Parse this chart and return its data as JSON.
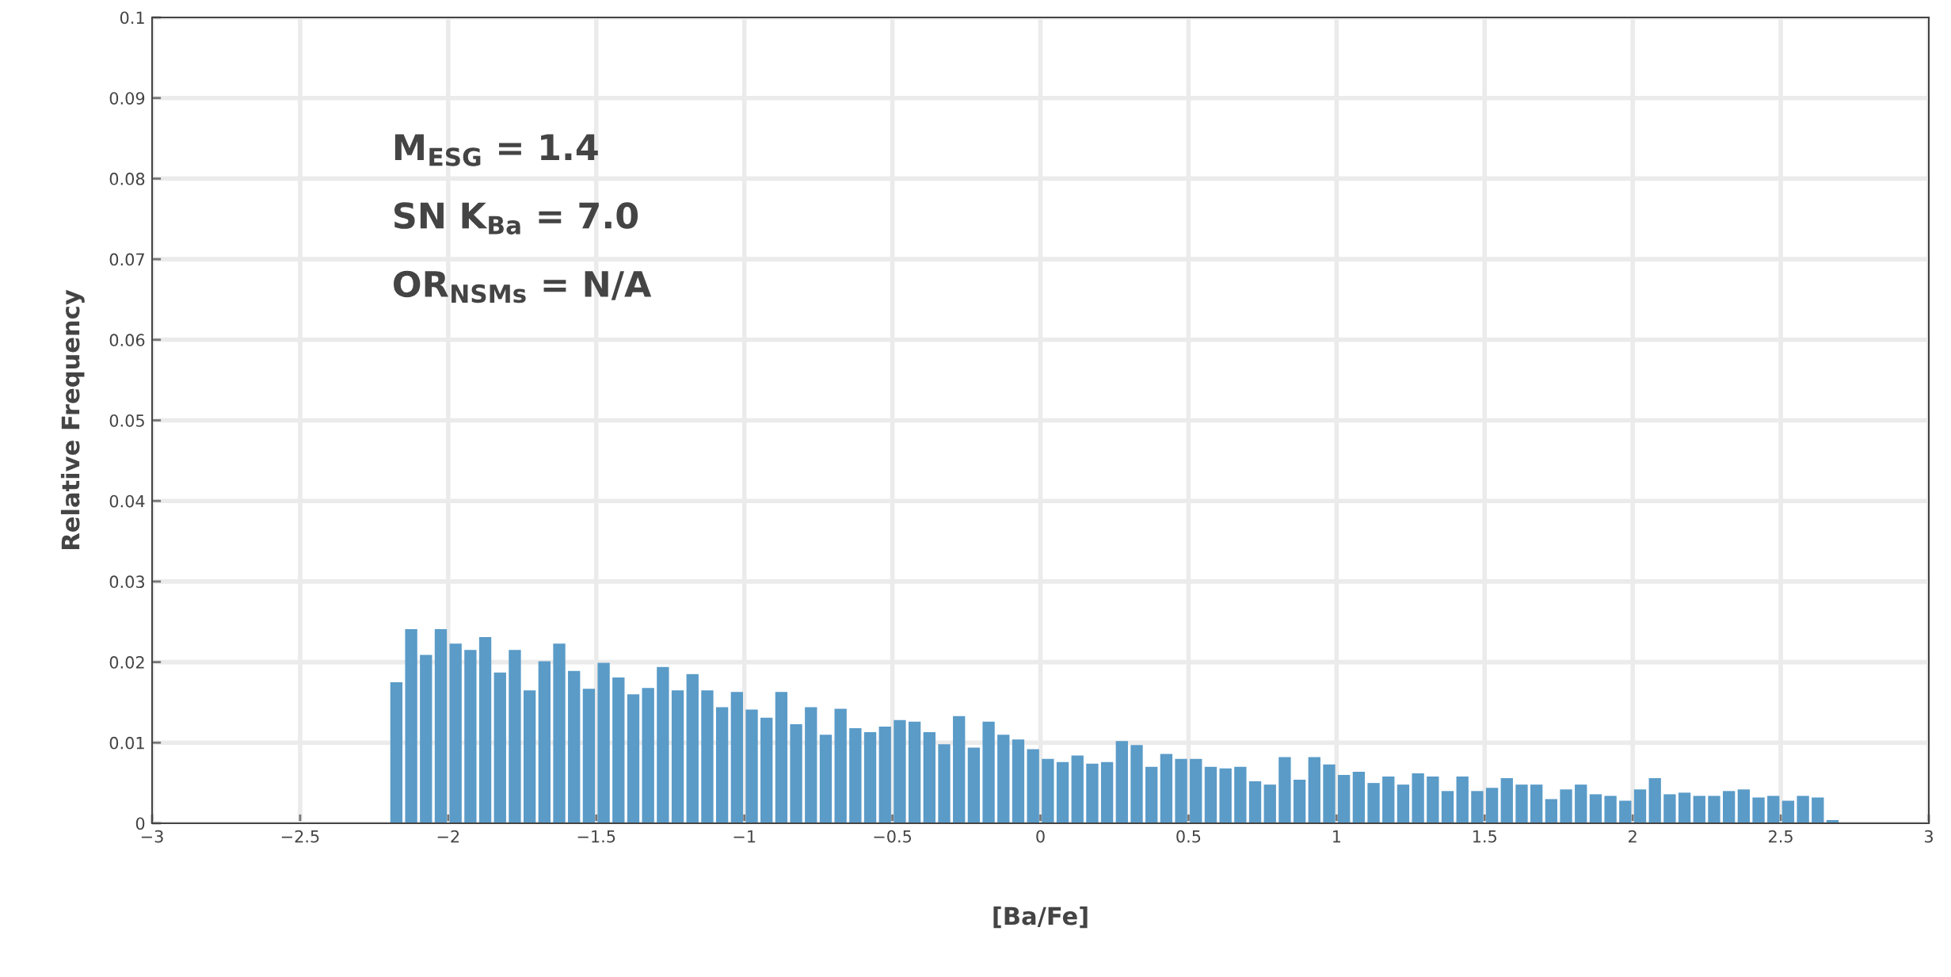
{
  "chart_data": {
    "type": "histogram",
    "xlabel": "[Ba/Fe]",
    "ylabel": "Relative Frequency",
    "annotations": [
      "M$_{ESG}$ = 1.4",
      "SN K$_{Ba}$ = 7.0",
      "OR$_{NSMs}$ = N/A"
    ],
    "bins": [
      -2.2,
      -2.15,
      -2.1,
      -2.05,
      -2.0,
      -1.95,
      -1.9,
      -1.85,
      -1.8,
      -1.75,
      -1.7,
      -1.65,
      -1.6,
      -1.55,
      -1.5,
      -1.45,
      -1.4,
      -1.35,
      -1.3,
      -1.25,
      -1.2,
      -1.15,
      -1.1,
      -1.05,
      -1.0,
      -0.95,
      -0.9,
      -0.85,
      -0.8,
      -0.75,
      -0.7,
      -0.65,
      -0.6,
      -0.55,
      -0.5,
      -0.45,
      -0.4,
      -0.35,
      -0.3,
      -0.25,
      -0.2,
      -0.15,
      -0.1,
      -0.05,
      0.0,
      0.05,
      0.1,
      0.15,
      0.2,
      0.25,
      0.3,
      0.35,
      0.4,
      0.45,
      0.5,
      0.55,
      0.6,
      0.65,
      0.7,
      0.75,
      0.8,
      0.85,
      0.9,
      0.95,
      1.0,
      1.05,
      1.1,
      1.15,
      1.2,
      1.25,
      1.3,
      1.35,
      1.4,
      1.45,
      1.5,
      1.55,
      1.6,
      1.65,
      1.7,
      1.75,
      1.8,
      1.85,
      1.9,
      1.95,
      2.0,
      2.05,
      2.1,
      2.15,
      2.2,
      2.25,
      2.3,
      2.35,
      2.4,
      2.45,
      2.5,
      2.55,
      2.6,
      2.65,
      2.7
    ],
    "values": [
      0.0175,
      0.0241,
      0.0209,
      0.0241,
      0.0223,
      0.0215,
      0.0231,
      0.0187,
      0.0215,
      0.0165,
      0.0201,
      0.0223,
      0.0189,
      0.0167,
      0.0199,
      0.0181,
      0.016,
      0.0168,
      0.0194,
      0.0165,
      0.0185,
      0.0165,
      0.0144,
      0.0163,
      0.0141,
      0.0131,
      0.0163,
      0.0123,
      0.0144,
      0.011,
      0.0142,
      0.0118,
      0.0113,
      0.012,
      0.0128,
      0.0126,
      0.0113,
      0.0098,
      0.0133,
      0.0094,
      0.0126,
      0.011,
      0.0104,
      0.0092,
      0.008,
      0.0076,
      0.0084,
      0.0074,
      0.0076,
      0.0102,
      0.0097,
      0.007,
      0.0086,
      0.008,
      0.008,
      0.007,
      0.0068,
      0.007,
      0.0052,
      0.0048,
      0.0082,
      0.0054,
      0.0082,
      0.0073,
      0.006,
      0.0064,
      0.005,
      0.0058,
      0.0048,
      0.0062,
      0.0058,
      0.004,
      0.0058,
      0.004,
      0.0044,
      0.0056,
      0.0048,
      0.0048,
      0.003,
      0.0042,
      0.0048,
      0.0036,
      0.0034,
      0.0028,
      0.0042,
      0.0056,
      0.0036,
      0.0038,
      0.0034,
      0.0034,
      0.004,
      0.0042,
      0.0032,
      0.0034,
      0.0028,
      0.0034,
      0.0032,
      0.0004
    ],
    "color": "#5a9bc8",
    "xlim": [
      -3,
      3
    ],
    "xticks": [
      {
        "value": -3,
        "label": "−3"
      },
      {
        "value": -2.5,
        "label": "−2.5"
      },
      {
        "value": -2,
        "label": "−2"
      },
      {
        "value": -1.5,
        "label": "−1.5"
      },
      {
        "value": -1,
        "label": "−1"
      },
      {
        "value": -0.5,
        "label": "−0.5"
      },
      0,
      0.5,
      1,
      1.5,
      2,
      2.5,
      3
    ],
    "ylim": [
      0,
      0.1
    ],
    "yticks": [
      0,
      0.01,
      0.02,
      0.03,
      0.04,
      0.05,
      0.06,
      0.07,
      0.08,
      0.09,
      0.1
    ],
    "grid": true
  }
}
